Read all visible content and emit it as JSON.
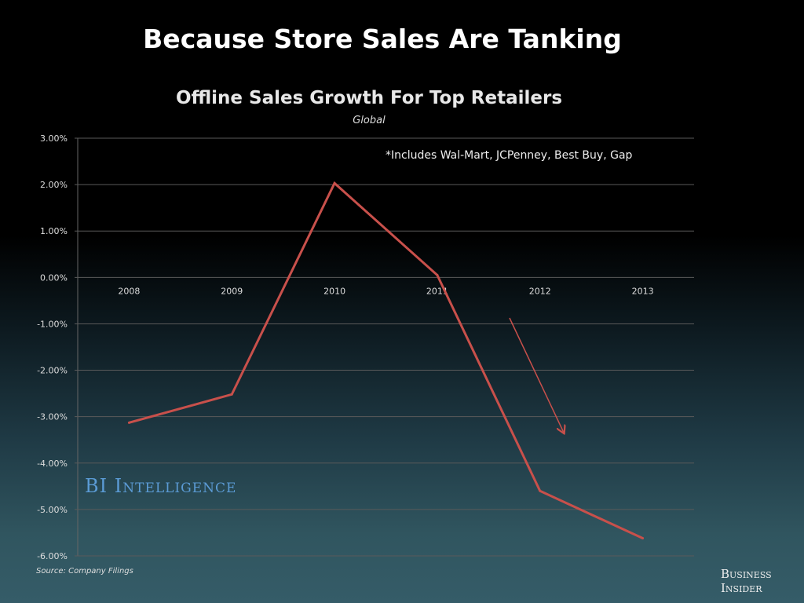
{
  "headline": "Because Store Sales Are Tanking",
  "note": "*Includes Wal-Mart, JCPenney, Best Buy, Gap",
  "watermark": "BI Intelligence",
  "source": "Source: Company Filings",
  "brand": [
    "Business",
    "Insider"
  ],
  "colors": {
    "line": "#c8504b",
    "grid": "#5a5a5a",
    "watermark": "#5b9bd5"
  },
  "chart_data": {
    "type": "line",
    "title": "Offline Sales Growth For Top Retailers",
    "subtitle": "Global",
    "categories": [
      "2008",
      "2009",
      "2010",
      "2011",
      "2012",
      "2013"
    ],
    "values": [
      -3.13,
      -2.52,
      2.03,
      0.05,
      -4.6,
      -5.62
    ],
    "ylim": [
      -6,
      3
    ],
    "yticks": [
      "3.00%",
      "2.00%",
      "1.00%",
      "0.00%",
      "-1.00%",
      "-2.00%",
      "-3.00%",
      "-4.00%",
      "-5.00%",
      "-6.00%"
    ],
    "grid": true,
    "annotation": "downward arrow near 2012"
  }
}
